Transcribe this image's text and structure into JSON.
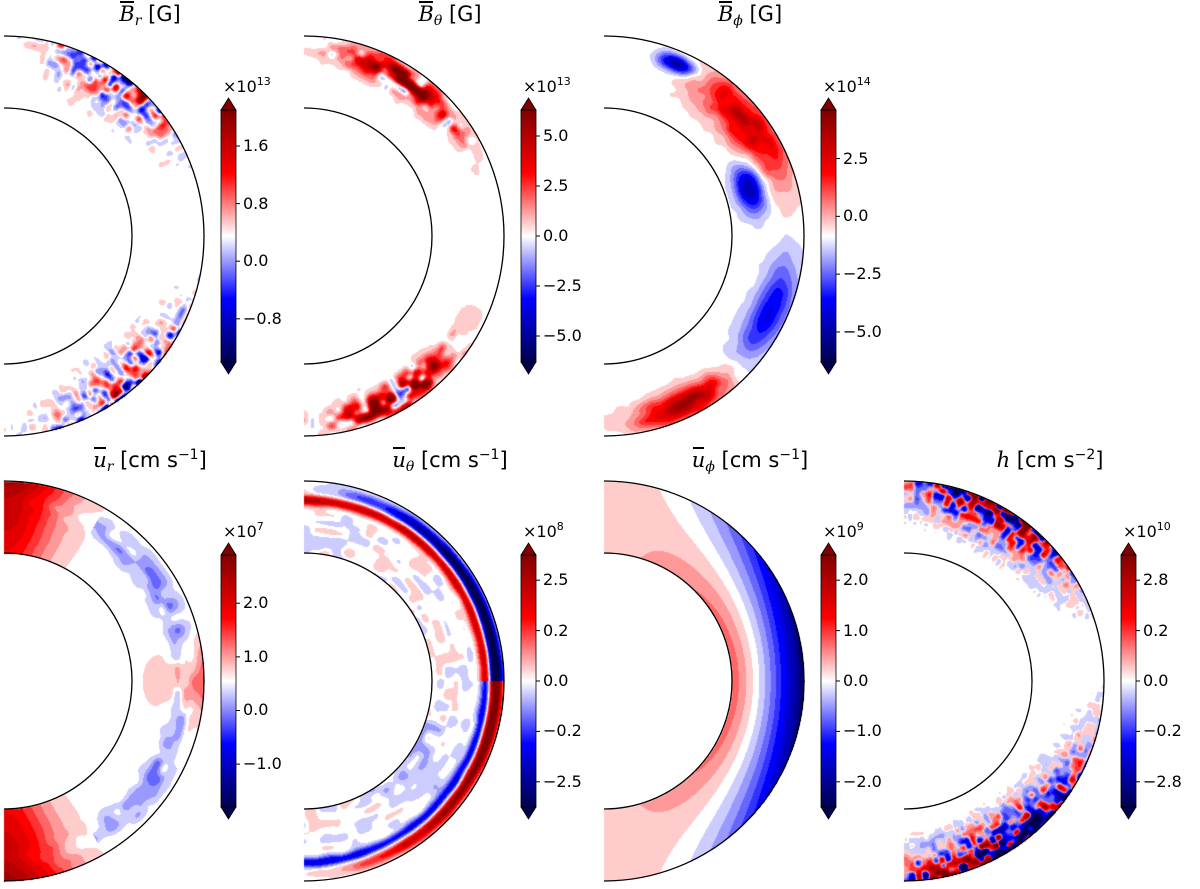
{
  "chart_data": [
    {
      "type": "heatmap",
      "title": "B̄r [G]",
      "title_parts": {
        "symbol": "B",
        "sub": "r",
        "unit": "[G]"
      },
      "colormap": "seismic",
      "multiplier": "×10",
      "multiplier_exp": "13",
      "clim": [
        -1.4,
        2.1
      ],
      "ticks": [
        "1.6",
        "0.8",
        "0.0",
        "−0.8"
      ],
      "tick_values": [
        1.6,
        0.8,
        0.0,
        -0.8
      ],
      "field": "Br"
    },
    {
      "type": "heatmap",
      "title": "B̄θ [G]",
      "title_parts": {
        "symbol": "B",
        "sub": "θ",
        "unit": "[G]"
      },
      "colormap": "seismic",
      "multiplier": "×10",
      "multiplier_exp": "13",
      "clim": [
        -6.3,
        6.3
      ],
      "ticks": [
        "5.0",
        "2.5",
        "0.0",
        "−2.5",
        "−5.0"
      ],
      "tick_values": [
        5.0,
        2.5,
        0.0,
        -2.5,
        -5.0
      ],
      "field": "Bt"
    },
    {
      "type": "heatmap",
      "title": "B̄φ [G]",
      "title_parts": {
        "symbol": "B",
        "sub": "ϕ",
        "unit": "[G]"
      },
      "colormap": "seismic",
      "multiplier": "×10",
      "multiplier_exp": "14",
      "clim": [
        -6.3,
        4.6
      ],
      "ticks": [
        "2.5",
        "0.0",
        "−2.5",
        "−5.0"
      ],
      "tick_values": [
        2.5,
        0.0,
        -2.5,
        -5.0
      ],
      "field": "Bp"
    },
    {
      "type": "heatmap",
      "title": "ūr [cm s−1]",
      "title_parts": {
        "symbol": "u",
        "sub": "r",
        "unit": "[cm s",
        "unit_sup": "−1",
        "unit_end": "]"
      },
      "colormap": "seismic",
      "multiplier": "×10",
      "multiplier_exp": "7",
      "clim": [
        -1.8,
        2.9
      ],
      "ticks": [
        "2.0",
        "1.0",
        "0.0",
        "−1.0"
      ],
      "tick_values": [
        2.0,
        1.0,
        0.0,
        -1.0
      ],
      "field": "ur"
    },
    {
      "type": "heatmap",
      "title": "ūθ [cm s−1]",
      "title_parts": {
        "symbol": "u",
        "sub": "θ",
        "unit": "[cm s",
        "unit_sup": "−1",
        "unit_end": "]"
      },
      "colormap": "seismic",
      "multiplier": "×10",
      "multiplier_exp": "8",
      "ticks": [
        "2.5",
        "0.2",
        "0.0",
        "−0.2",
        "−2.5"
      ],
      "tick_values": [
        2.5,
        0.2,
        0.0,
        -0.2,
        -2.5
      ],
      "field": "ut"
    },
    {
      "type": "heatmap",
      "title": "ūφ [cm s−1]",
      "title_parts": {
        "symbol": "u",
        "sub": "ϕ",
        "unit": "[cm s",
        "unit_sup": "−1",
        "unit_end": "]"
      },
      "colormap": "seismic",
      "multiplier": "×10",
      "multiplier_exp": "9",
      "ticks": [
        "2.0",
        "1.0",
        "0.0",
        "−1.0",
        "−2.0"
      ],
      "tick_values": [
        2.0,
        1.0,
        0.0,
        -1.0,
        -2.0
      ],
      "field": "up"
    },
    {
      "type": "heatmap",
      "title": "h [cm s−2]",
      "title_parts": {
        "symbol": "h",
        "sub": "",
        "unit": "[cm s",
        "unit_sup": "−2",
        "unit_end": "]"
      },
      "colormap": "seismic",
      "multiplier": "×10",
      "multiplier_exp": "10",
      "ticks": [
        "2.8",
        "0.2",
        "0.0",
        "−0.2",
        "−2.8"
      ],
      "tick_values": [
        2.8,
        0.2,
        0.0,
        -0.2,
        -2.8
      ],
      "field": "h"
    }
  ]
}
